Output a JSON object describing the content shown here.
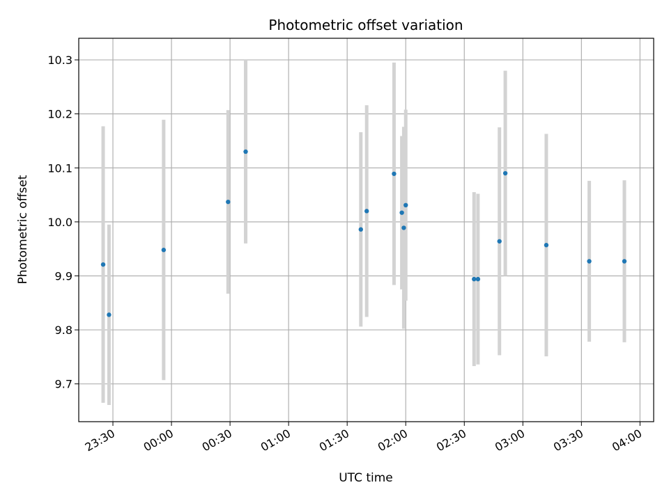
{
  "chart_data": {
    "type": "scatter",
    "title": "Photometric offset variation",
    "xlabel": "UTC time",
    "ylabel": "Photometric offset",
    "x_tick_labels": [
      "23:30",
      "00:00",
      "00:30",
      "01:00",
      "01:30",
      "02:00",
      "02:30",
      "03:00",
      "03:30",
      "04:00"
    ],
    "x_tick_minutes": [
      -30,
      0,
      30,
      60,
      90,
      120,
      150,
      180,
      210,
      240
    ],
    "xlim_minutes": [
      -47.5,
      247
    ],
    "y_ticks": [
      9.7,
      9.8,
      9.9,
      10.0,
      10.1,
      10.2,
      10.3
    ],
    "ylim": [
      9.63,
      10.34
    ],
    "grid": true,
    "point_color": "#1f77b4",
    "errorbar_color": "#d3d3d3",
    "points": [
      {
        "t": "23:25",
        "y": 9.921,
        "err": 0.256
      },
      {
        "t": "23:28",
        "y": 9.828,
        "err": 0.167
      },
      {
        "t": "23:56",
        "y": 9.948,
        "err": 0.241
      },
      {
        "t": "00:29",
        "y": 10.037,
        "err": 0.17
      },
      {
        "t": "00:38",
        "y": 10.13,
        "err": 0.17
      },
      {
        "t": "01:37",
        "y": 9.986,
        "err": 0.18
      },
      {
        "t": "01:40",
        "y": 10.02,
        "err": 0.196
      },
      {
        "t": "01:54",
        "y": 10.089,
        "err": 0.206
      },
      {
        "t": "01:58",
        "y": 10.017,
        "err": 0.142
      },
      {
        "t": "01:59",
        "y": 9.989,
        "err": 0.187
      },
      {
        "t": "02:00",
        "y": 10.031,
        "err": 0.177
      },
      {
        "t": "02:35",
        "y": 9.894,
        "err": 0.161
      },
      {
        "t": "02:37",
        "y": 9.894,
        "err": 0.158
      },
      {
        "t": "02:48",
        "y": 9.964,
        "err": 0.211
      },
      {
        "t": "02:51",
        "y": 10.09,
        "err": 0.19
      },
      {
        "t": "03:12",
        "y": 9.957,
        "err": 0.206
      },
      {
        "t": "03:34",
        "y": 9.927,
        "err": 0.149
      },
      {
        "t": "03:52",
        "y": 9.927,
        "err": 0.15
      }
    ]
  }
}
